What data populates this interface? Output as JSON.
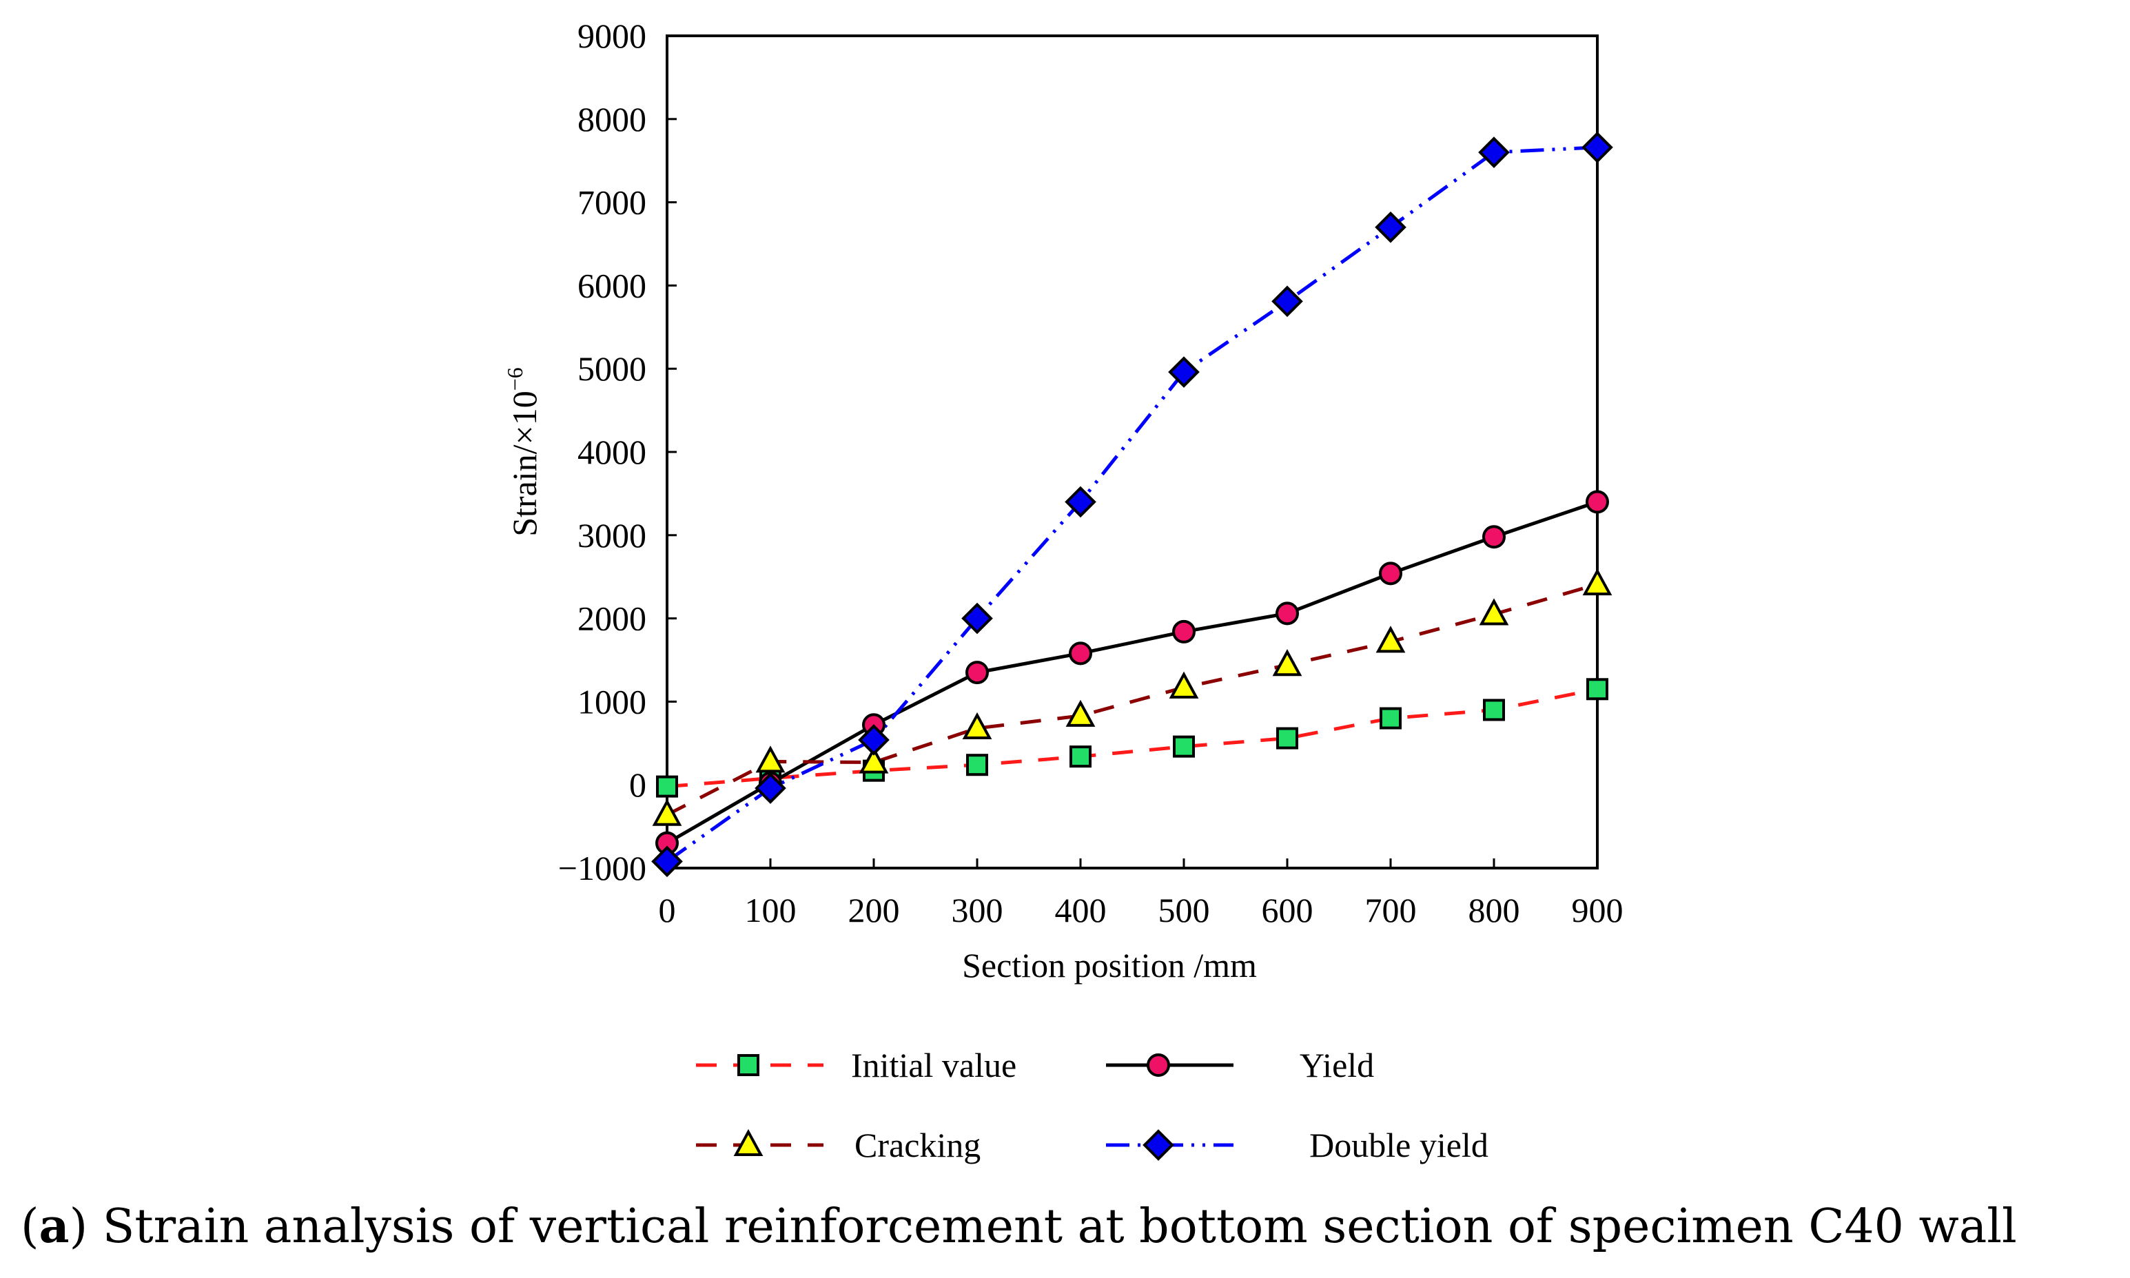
{
  "chart_data": {
    "type": "line",
    "title": "",
    "xlabel": "Section position /mm",
    "ylabel": "Strain/×10",
    "ylabel_superscript": "−6",
    "x": [
      0,
      100,
      200,
      300,
      400,
      500,
      600,
      700,
      800,
      900
    ],
    "xlim": [
      0,
      900
    ],
    "ylim": [
      -1000,
      9000
    ],
    "x_ticks": [
      "0",
      "100",
      "200",
      "300",
      "400",
      "500",
      "600",
      "700",
      "800",
      "900"
    ],
    "y_ticks": [
      "−1000",
      "0",
      "1000",
      "2000",
      "3000",
      "4000",
      "5000",
      "6000",
      "7000",
      "8000",
      "9000"
    ],
    "y_tick_values": [
      -1000,
      0,
      1000,
      2000,
      3000,
      4000,
      5000,
      6000,
      7000,
      8000,
      9000
    ],
    "grid": false,
    "legend_position": "bottom",
    "series": [
      {
        "name": "Initial value",
        "values": [
          -20,
          80,
          170,
          240,
          340,
          460,
          560,
          800,
          900,
          1150
        ],
        "color": "#ff1a1a",
        "marker": "square",
        "marker_color": "#22dd66",
        "dash": "long-dash"
      },
      {
        "name": "Yield",
        "values": [
          -700,
          20,
          720,
          1350,
          1580,
          1840,
          2060,
          2540,
          2980,
          3400
        ],
        "color": "#000000",
        "marker": "circle",
        "marker_color": "#ee1166",
        "dash": "solid"
      },
      {
        "name": "Cracking",
        "values": [
          -360,
          280,
          270,
          680,
          830,
          1170,
          1440,
          1720,
          2050,
          2410
        ],
        "color": "#8b0000",
        "marker": "triangle",
        "marker_color": "#ffff00",
        "dash": "long-dash"
      },
      {
        "name": "Double yield",
        "values": [
          -920,
          -40,
          540,
          2000,
          3400,
          4960,
          5810,
          6700,
          7600,
          7660
        ],
        "color": "#0000ff",
        "marker": "diamond",
        "marker_color": "#0000ee",
        "dash": "dash-dot-dot"
      }
    ]
  },
  "caption": {
    "label": "a",
    "text": " Strain analysis of vertical reinforcement at bottom section of specimen C40 wall"
  }
}
